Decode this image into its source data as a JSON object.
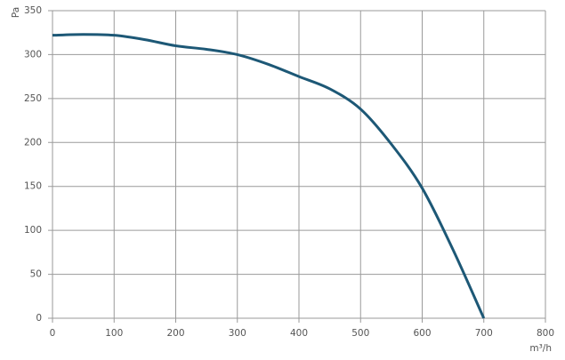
{
  "chart_data": {
    "type": "line",
    "x_label": "m³/h",
    "y_label": "Pa",
    "x": [
      0,
      50,
      100,
      150,
      200,
      250,
      300,
      350,
      400,
      450,
      500,
      550,
      600,
      650,
      700
    ],
    "series": [
      {
        "color": "#1d5876",
        "values": [
          322,
          323,
          322,
          317,
          310,
          306,
          300,
          289,
          275,
          261,
          238,
          198,
          148,
          78,
          0
        ]
      }
    ],
    "xlim": [
      0,
      800
    ],
    "xticks": [
      0,
      100,
      200,
      300,
      400,
      500,
      600,
      700,
      800
    ],
    "ylim": [
      0,
      350
    ],
    "yticks": [
      0,
      50,
      100,
      150,
      200,
      250,
      300,
      350
    ],
    "grid": true
  }
}
